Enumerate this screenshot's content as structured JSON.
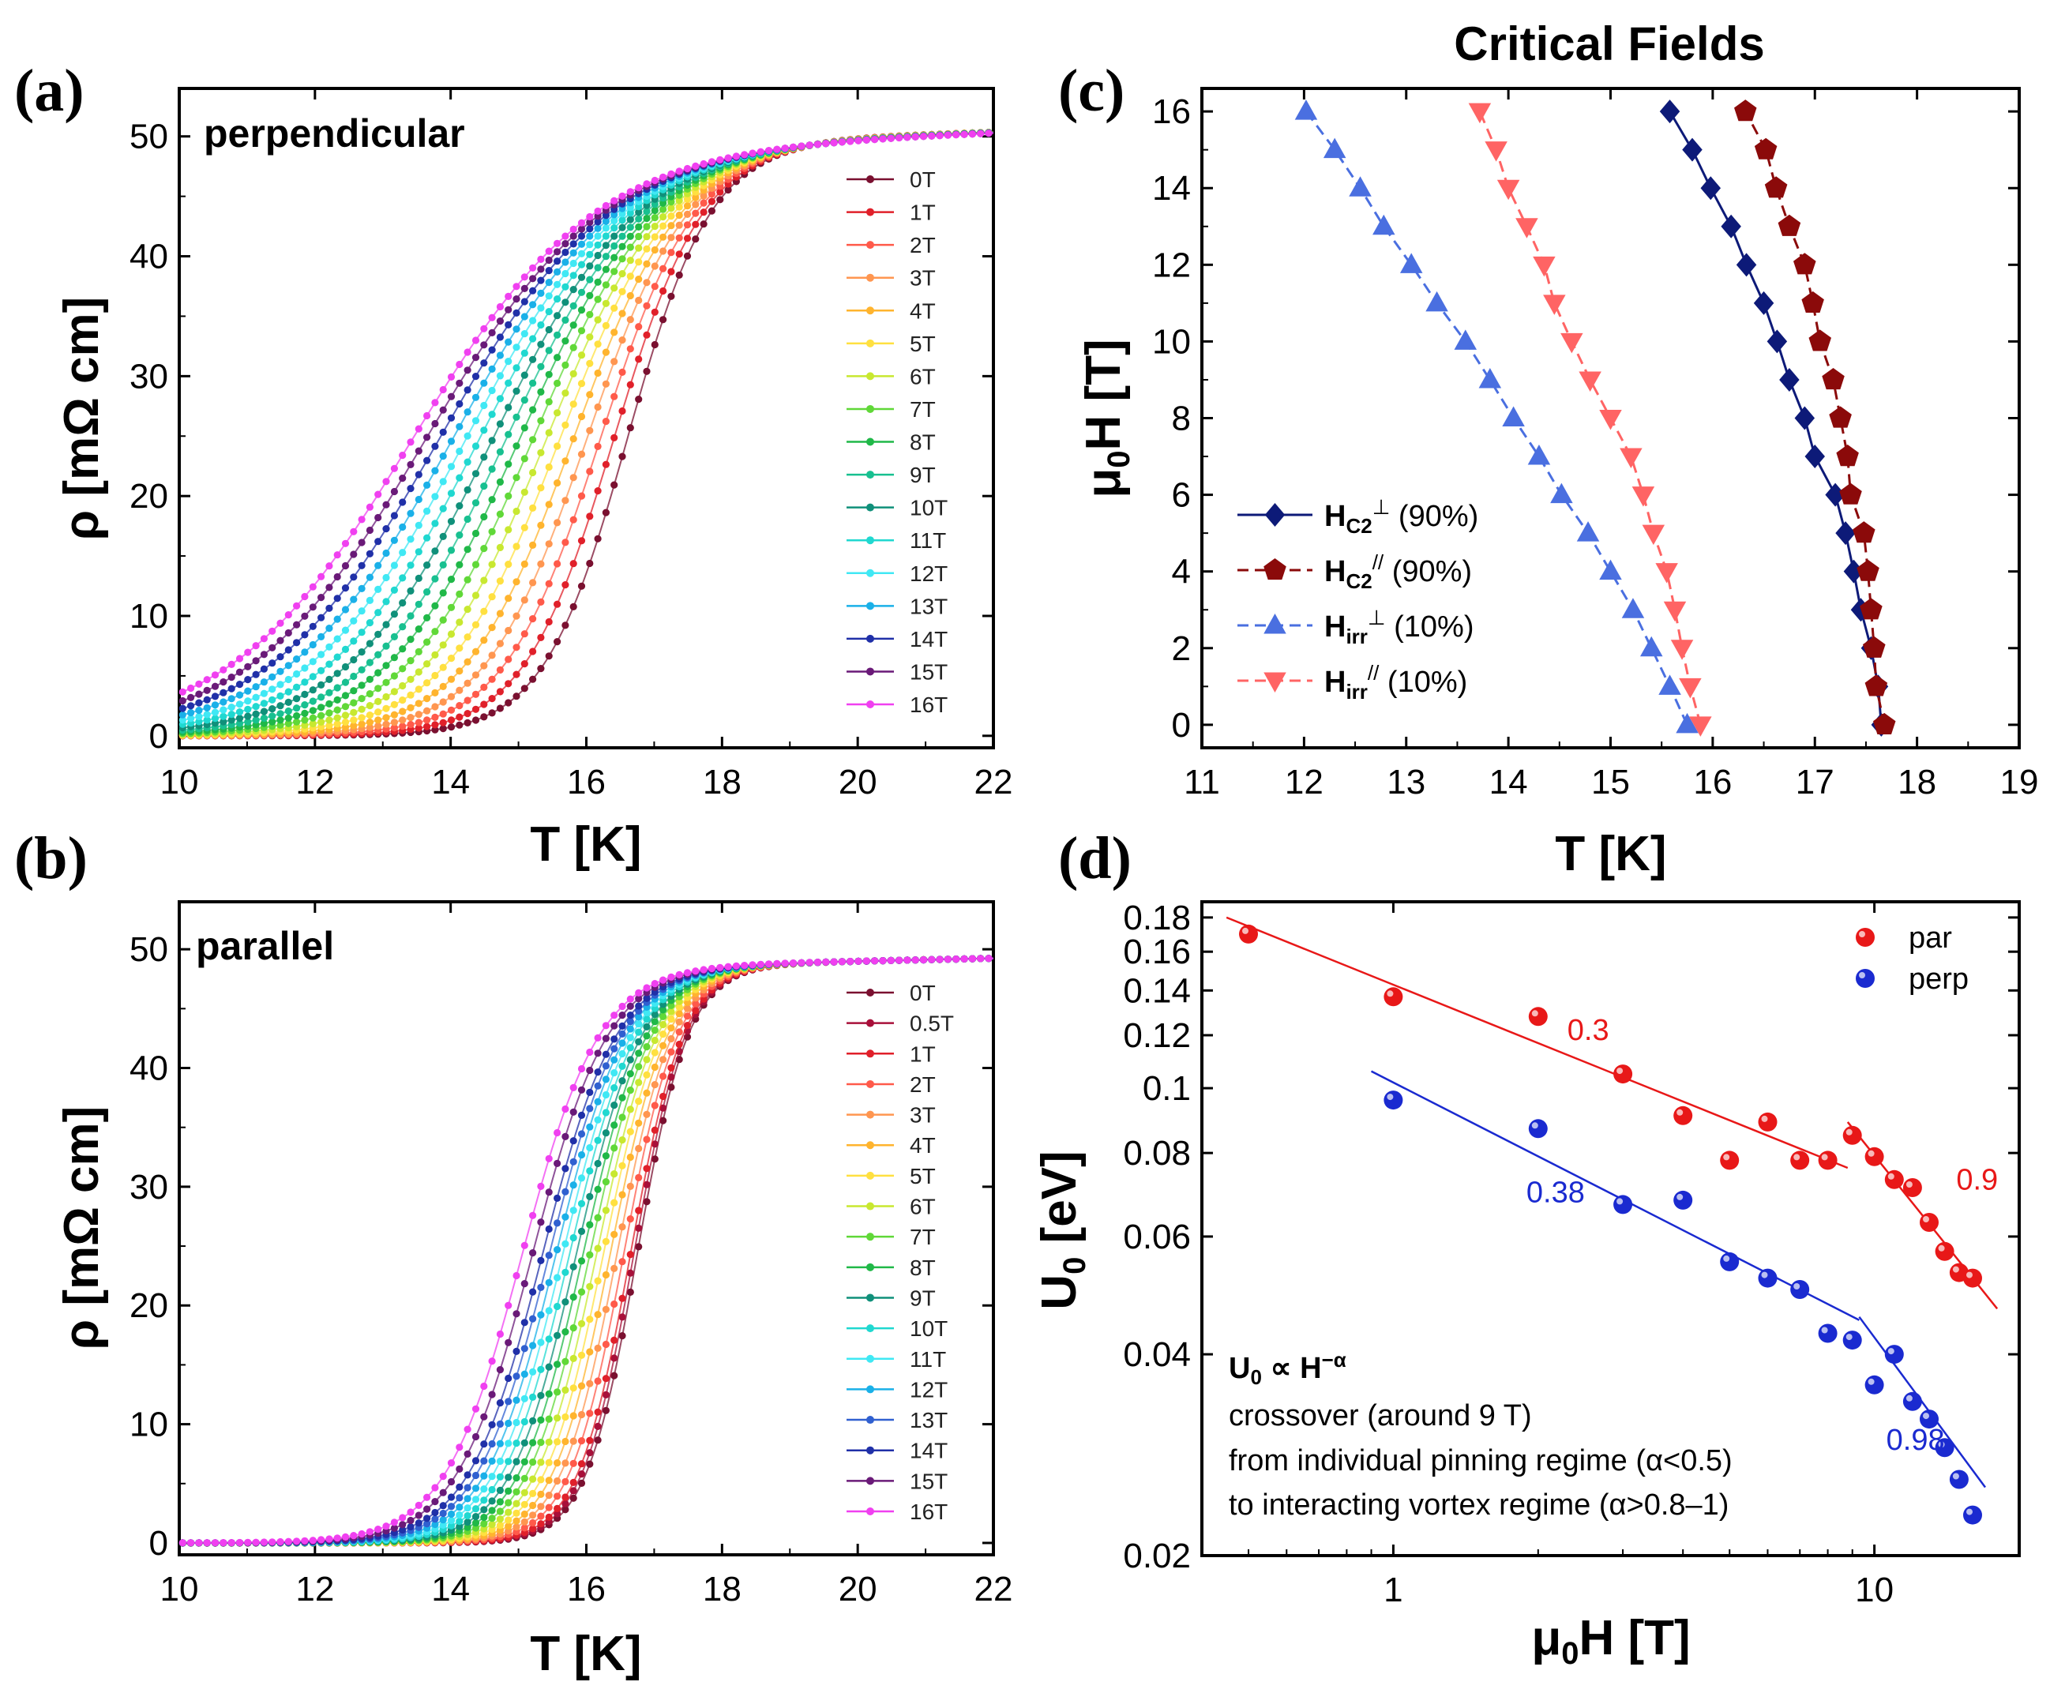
{
  "chart_data": [
    {
      "panel_label": "(a)",
      "type": "line",
      "title": "perpendicular",
      "xlabel": "T [K]",
      "ylabel": "ρ [mΩ cm]",
      "xlim": [
        10,
        22
      ],
      "ylim": [
        -1,
        54
      ],
      "xticks": [
        10,
        12,
        14,
        16,
        18,
        20,
        22
      ],
      "yticks": [
        0,
        10,
        20,
        30,
        40,
        50
      ],
      "legend_position": "right",
      "model": {
        "rho_normal": 50,
        "rho_slope_per_K": 0.18,
        "width_K": 0.62,
        "width_growth_per_T": 0.045
      },
      "series": [
        {
          "name": "0T",
          "field": 0,
          "tc_mid_K": 16.6,
          "color": "#7a1030"
        },
        {
          "name": "1T",
          "field": 1,
          "tc_mid_K": 16.4,
          "color": "#e0202a"
        },
        {
          "name": "2T",
          "field": 2,
          "tc_mid_K": 16.2,
          "color": "#ff5a4a"
        },
        {
          "name": "3T",
          "field": 3,
          "tc_mid_K": 16.0,
          "color": "#ff9650"
        },
        {
          "name": "4T",
          "field": 4,
          "tc_mid_K": 15.8,
          "color": "#ffb42e"
        },
        {
          "name": "5T",
          "field": 5,
          "tc_mid_K": 15.6,
          "color": "#ffe040"
        },
        {
          "name": "6T",
          "field": 6,
          "tc_mid_K": 15.4,
          "color": "#c8e830"
        },
        {
          "name": "7T",
          "field": 7,
          "tc_mid_K": 15.2,
          "color": "#60d838"
        },
        {
          "name": "8T",
          "field": 8,
          "tc_mid_K": 15.0,
          "color": "#20b848"
        },
        {
          "name": "9T",
          "field": 9,
          "tc_mid_K": 14.8,
          "color": "#18c090"
        },
        {
          "name": "10T",
          "field": 10,
          "tc_mid_K": 14.6,
          "color": "#10907a"
        },
        {
          "name": "11T",
          "field": 11,
          "tc_mid_K": 14.4,
          "color": "#20d8d0"
        },
        {
          "name": "12T",
          "field": 12,
          "tc_mid_K": 14.2,
          "color": "#40e8f4"
        },
        {
          "name": "13T",
          "field": 13,
          "tc_mid_K": 14.0,
          "color": "#1ab0e8"
        },
        {
          "name": "14T",
          "field": 14,
          "tc_mid_K": 13.8,
          "color": "#2030a8"
        },
        {
          "name": "15T",
          "field": 15,
          "tc_mid_K": 13.6,
          "color": "#6a1a78"
        },
        {
          "name": "16T",
          "field": 16,
          "tc_mid_K": 13.4,
          "color": "#f040f0"
        }
      ]
    },
    {
      "panel_label": "(b)",
      "type": "line",
      "title": "parallel",
      "xlabel": "T [K]",
      "ylabel": "ρ [mΩ cm]",
      "xlim": [
        10,
        22
      ],
      "ylim": [
        -1,
        54
      ],
      "xticks": [
        10,
        12,
        14,
        16,
        18,
        20,
        22
      ],
      "yticks": [
        0,
        10,
        20,
        30,
        40,
        50
      ],
      "legend_position": "right",
      "model": {
        "rho_normal": 49,
        "rho_slope_per_K": 0.12,
        "width_K": 0.38,
        "width_growth_per_T": 0.012
      },
      "series": [
        {
          "name": "0T",
          "field": 0,
          "tc_mid_K": 16.75,
          "color": "#7a1030"
        },
        {
          "name": "0.5T",
          "field": 0.5,
          "tc_mid_K": 16.7,
          "color": "#a8103a"
        },
        {
          "name": "1T",
          "field": 1,
          "tc_mid_K": 16.65,
          "color": "#e0202a"
        },
        {
          "name": "2T",
          "field": 2,
          "tc_mid_K": 16.55,
          "color": "#ff5a4a"
        },
        {
          "name": "3T",
          "field": 3,
          "tc_mid_K": 16.45,
          "color": "#ff9650"
        },
        {
          "name": "4T",
          "field": 4,
          "tc_mid_K": 16.35,
          "color": "#ffb42e"
        },
        {
          "name": "5T",
          "field": 5,
          "tc_mid_K": 16.25,
          "color": "#ffe040"
        },
        {
          "name": "6T",
          "field": 6,
          "tc_mid_K": 16.15,
          "color": "#c8e830"
        },
        {
          "name": "7T",
          "field": 7,
          "tc_mid_K": 16.05,
          "color": "#60d838"
        },
        {
          "name": "8T",
          "field": 8,
          "tc_mid_K": 15.95,
          "color": "#20b848"
        },
        {
          "name": "9T",
          "field": 9,
          "tc_mid_K": 15.85,
          "color": "#10907a"
        },
        {
          "name": "10T",
          "field": 10,
          "tc_mid_K": 15.75,
          "color": "#20d8d0"
        },
        {
          "name": "11T",
          "field": 11,
          "tc_mid_K": 15.65,
          "color": "#40e8f4"
        },
        {
          "name": "12T",
          "field": 12,
          "tc_mid_K": 15.55,
          "color": "#1ab0e8"
        },
        {
          "name": "13T",
          "field": 13,
          "tc_mid_K": 15.45,
          "color": "#3060d0"
        },
        {
          "name": "14T",
          "field": 14,
          "tc_mid_K": 15.35,
          "color": "#2030a8"
        },
        {
          "name": "15T",
          "field": 15,
          "tc_mid_K": 15.2,
          "color": "#6a1a78"
        },
        {
          "name": "16T",
          "field": 16,
          "tc_mid_K": 15.05,
          "color": "#f040f0"
        }
      ]
    },
    {
      "panel_label": "(c)",
      "type": "line",
      "title": "Critical Fields",
      "xlabel": "T [K]",
      "ylabel_main": "μ",
      "ylabel_sub": "0",
      "ylabel_tail": "H [T]",
      "xlim": [
        11,
        19
      ],
      "ylim": [
        -0.6,
        16.6
      ],
      "xticks": [
        11,
        12,
        13,
        14,
        15,
        16,
        17,
        18,
        19
      ],
      "yticks": [
        0,
        2,
        4,
        6,
        8,
        10,
        12,
        14,
        16
      ],
      "legend_position": "left",
      "fields": [
        0,
        1,
        2,
        3,
        4,
        5,
        6,
        7,
        8,
        9,
        10,
        11,
        12,
        13,
        14,
        15,
        16
      ],
      "series": [
        {
          "key": "hc2perp",
          "name": "Hc2⊥ (90%)",
          "label_main": "H",
          "label_sub": "C2",
          "label_sup": "⊥",
          "label_tail": " (90%)",
          "marker": "diamond",
          "color": "#0d1a78",
          "dash": false,
          "x": [
            17.65,
            17.62,
            17.55,
            17.45,
            17.38,
            17.3,
            17.2,
            17.0,
            16.9,
            16.75,
            16.63,
            16.5,
            16.33,
            16.18,
            15.98,
            15.8,
            15.58
          ]
        },
        {
          "key": "hc2par",
          "name": "Hc2// (90%)",
          "label_main": "H",
          "label_sub": "C2",
          "label_sup": "//",
          "label_tail": " (90%)",
          "marker": "pentagon",
          "color": "#8b0a0a",
          "dash": true,
          "x": [
            17.68,
            17.6,
            17.58,
            17.55,
            17.52,
            17.48,
            17.35,
            17.32,
            17.25,
            17.18,
            17.05,
            16.98,
            16.9,
            16.75,
            16.62,
            16.52,
            16.32
          ]
        },
        {
          "key": "hirrperp",
          "name": "Hirr⊥ (10%)",
          "label_main": "H",
          "label_sub": "irr",
          "label_sup": "⊥",
          "label_tail": " (10%)",
          "marker": "triangle-up",
          "color": "#4a6fe0",
          "dash": true,
          "x": [
            15.75,
            15.58,
            15.4,
            15.22,
            15.0,
            14.78,
            14.52,
            14.3,
            14.05,
            13.82,
            13.58,
            13.3,
            13.05,
            12.78,
            12.55,
            12.3,
            12.02
          ]
        },
        {
          "key": "hirrpar",
          "name": "Hirr// (10%)",
          "label_main": "H",
          "label_sub": "irr",
          "label_sup": "//",
          "label_tail": " (10%)",
          "marker": "triangle-down",
          "color": "#ff6464",
          "dash": true,
          "x": [
            15.88,
            15.78,
            15.7,
            15.63,
            15.55,
            15.42,
            15.32,
            15.2,
            15.0,
            14.8,
            14.62,
            14.45,
            14.35,
            14.18,
            14.0,
            13.88,
            13.72
          ]
        }
      ]
    },
    {
      "panel_label": "(d)",
      "type": "scatter",
      "xlabel_main": "μ",
      "xlabel_sub": "0",
      "xlabel_tail": "H [T]",
      "ylabel_main": "U",
      "ylabel_sub": "0",
      "ylabel_tail": " [eV]",
      "xscale": "log",
      "yscale": "log",
      "xlim": [
        0.4,
        20
      ],
      "ylim": [
        0.02,
        0.19
      ],
      "xticks": [
        1,
        10
      ],
      "xtick_labels": [
        "1",
        "10"
      ],
      "yticks": [
        0.02,
        0.04,
        0.06,
        0.08,
        0.1,
        0.12,
        0.14,
        0.16,
        0.18
      ],
      "ytick_labels": [
        "0.02",
        "0.04",
        "0.06",
        "0.08",
        "0.1",
        "0.12",
        "0.14",
        "0.16",
        "0.18"
      ],
      "legend_position": "top-right",
      "series": [
        {
          "name": "par",
          "color": "#e81818",
          "x": [
            0.5,
            1,
            2,
            3,
            4,
            5,
            6,
            7,
            8,
            9,
            10,
            11,
            12,
            13,
            14,
            15,
            16
          ],
          "y": [
            0.17,
            0.137,
            0.128,
            0.105,
            0.091,
            0.078,
            0.089,
            0.078,
            0.078,
            0.085,
            0.079,
            0.073,
            0.071,
            0.063,
            0.057,
            0.053,
            0.052
          ]
        },
        {
          "name": "perp",
          "color": "#1a2ad0",
          "x": [
            1,
            2,
            3,
            4,
            5,
            6,
            7,
            8,
            9,
            10,
            11,
            12,
            13,
            14,
            15,
            16
          ],
          "y": [
            0.096,
            0.087,
            0.067,
            0.068,
            0.055,
            0.052,
            0.05,
            0.043,
            0.042,
            0.036,
            0.04,
            0.034,
            0.032,
            0.029,
            0.026,
            0.023
          ]
        }
      ],
      "fits": [
        {
          "series": "par",
          "label": "0.3",
          "x": [
            0.45,
            8.8
          ],
          "y": [
            0.18,
            0.076
          ]
        },
        {
          "series": "par",
          "label": "0.9",
          "x": [
            8.8,
            18
          ],
          "y": [
            0.089,
            0.0468
          ]
        },
        {
          "series": "perp",
          "label": "0.38",
          "x": [
            0.9,
            9.3
          ],
          "y": [
            0.106,
            0.045
          ]
        },
        {
          "series": "perp",
          "label": "0.98",
          "x": [
            9.3,
            17
          ],
          "y": [
            0.0455,
            0.0253
          ]
        }
      ],
      "annotations": {
        "formula_main": "U",
        "formula_sub": "0",
        "formula_tail": " ∝ H",
        "formula_sup": "−α",
        "line1": "crossover (around 9 T)",
        "line2": "from individual pinning regime (α<0.5)",
        "line3": "to interacting vortex regime (α>0.8–1)"
      }
    }
  ]
}
